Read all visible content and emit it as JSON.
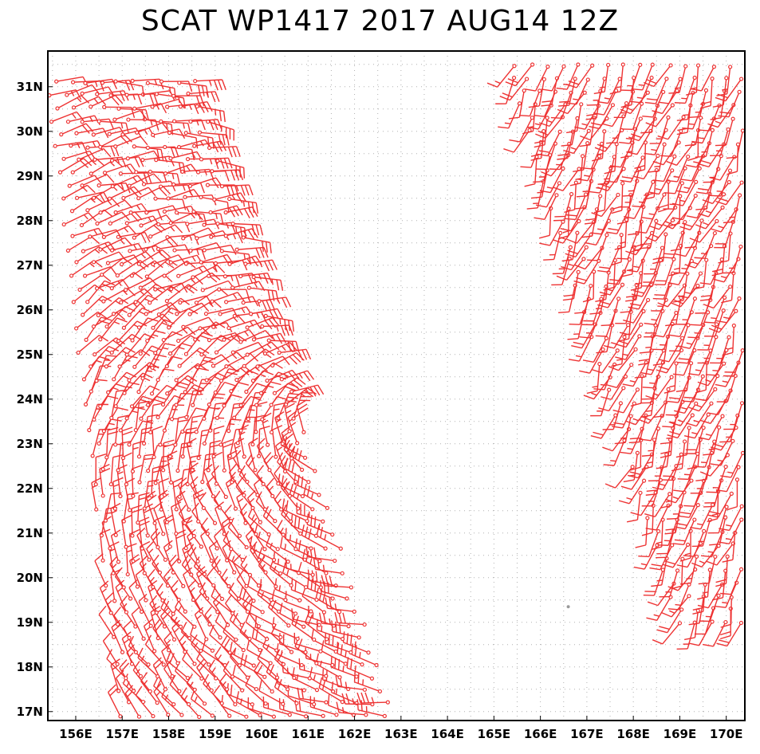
{
  "title": "SCAT WP1417 2017 AUG14 12Z",
  "colors": {
    "barb": "#ee3333",
    "grid": "#b0b0b0",
    "frame": "#000000",
    "calm_point": "#999999"
  },
  "map": {
    "lon_range": [
      155.4,
      170.4
    ],
    "lat_range": [
      16.8,
      31.8
    ],
    "lon_ticks": [
      {
        "value": 156,
        "label": "156E"
      },
      {
        "value": 157,
        "label": "157E"
      },
      {
        "value": 158,
        "label": "158E"
      },
      {
        "value": 159,
        "label": "159E"
      },
      {
        "value": 160,
        "label": "160E"
      },
      {
        "value": 161,
        "label": "161E"
      },
      {
        "value": 162,
        "label": "162E"
      },
      {
        "value": 163,
        "label": "163E"
      },
      {
        "value": 164,
        "label": "164E"
      },
      {
        "value": 165,
        "label": "165E"
      },
      {
        "value": 166,
        "label": "166E"
      },
      {
        "value": 167,
        "label": "167E"
      },
      {
        "value": 168,
        "label": "168E"
      },
      {
        "value": 169,
        "label": "169E"
      },
      {
        "value": 170,
        "label": "170E"
      }
    ],
    "lat_ticks": [
      {
        "value": 17,
        "label": "17N"
      },
      {
        "value": 18,
        "label": "18N"
      },
      {
        "value": 19,
        "label": "19N"
      },
      {
        "value": 20,
        "label": "20N"
      },
      {
        "value": 21,
        "label": "21N"
      },
      {
        "value": 22,
        "label": "22N"
      },
      {
        "value": 23,
        "label": "23N"
      },
      {
        "value": 24,
        "label": "24N"
      },
      {
        "value": 25,
        "label": "25N"
      },
      {
        "value": 26,
        "label": "26N"
      },
      {
        "value": 27,
        "label": "27N"
      },
      {
        "value": 28,
        "label": "28N"
      },
      {
        "value": 29,
        "label": "29N"
      },
      {
        "value": 30,
        "label": "30N"
      },
      {
        "value": 31,
        "label": "31N"
      }
    ],
    "grid": "dotted",
    "calm_point": {
      "lon": 166.6,
      "lat": 19.35
    },
    "swaths": [
      {
        "name": "west",
        "lat_min": 16.9,
        "lat_max": 31.2,
        "lon_west_south": 157.0,
        "lon_west_north": 155.4,
        "lon_east_south": 162.9,
        "lon_east_north": 158.6
      },
      {
        "name": "east",
        "lat_min": 19.0,
        "lat_max": 31.5,
        "lon_west_south": 169.0,
        "lon_west_north": 165.3,
        "lon_east_south": 170.4,
        "lon_east_north": 170.4
      }
    ]
  }
}
